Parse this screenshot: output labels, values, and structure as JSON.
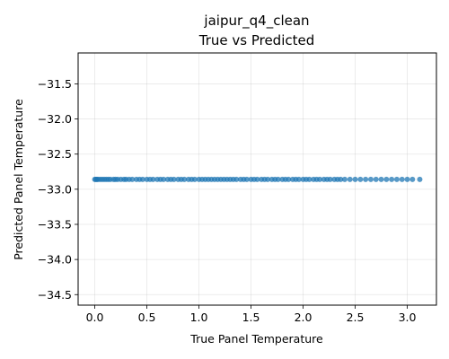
{
  "chart_data": {
    "type": "scatter",
    "title": "jaipur_q4_clean",
    "subtitle": "True vs Predicted",
    "xlabel": "True Panel Temperature",
    "ylabel": "Predicted Panel Temperature",
    "xlim": [
      -0.16,
      3.28
    ],
    "ylim": [
      -34.65,
      -31.06
    ],
    "xticks": [
      0.0,
      0.5,
      1.0,
      1.5,
      2.0,
      2.5,
      3.0
    ],
    "xtick_labels": [
      "0.0",
      "0.5",
      "1.0",
      "1.5",
      "2.0",
      "2.5",
      "3.0"
    ],
    "yticks": [
      -34.5,
      -34.0,
      -33.5,
      -33.0,
      -32.5,
      -32.0,
      -31.5
    ],
    "ytick_labels": [
      "−34.5",
      "−34.0",
      "−33.5",
      "−33.0",
      "−32.5",
      "−32.0",
      "−31.5"
    ],
    "grid": true,
    "marker_color": "#1f77b4",
    "series": [
      {
        "predicted_value": -32.86,
        "x": [
          0.0,
          0.01,
          0.02,
          0.03,
          0.05,
          0.07,
          0.09,
          0.11,
          0.13,
          0.15,
          0.18,
          0.2,
          0.22,
          0.25,
          0.28,
          0.3,
          0.33,
          0.36,
          0.4,
          0.43,
          0.46,
          0.5,
          0.53,
          0.56,
          0.6,
          0.63,
          0.66,
          0.7,
          0.73,
          0.76,
          0.8,
          0.83,
          0.86,
          0.9,
          0.93,
          0.96,
          1.0,
          1.03,
          1.06,
          1.09,
          1.12,
          1.15,
          1.18,
          1.21,
          1.24,
          1.27,
          1.3,
          1.33,
          1.36,
          1.4,
          1.43,
          1.46,
          1.5,
          1.53,
          1.56,
          1.6,
          1.63,
          1.66,
          1.7,
          1.73,
          1.76,
          1.8,
          1.83,
          1.86,
          1.9,
          1.93,
          1.96,
          2.0,
          2.03,
          2.06,
          2.1,
          2.13,
          2.16,
          2.2,
          2.23,
          2.26,
          2.3,
          2.33,
          2.36,
          2.4,
          2.45,
          2.5,
          2.55,
          2.6,
          2.65,
          2.7,
          2.75,
          2.8,
          2.85,
          2.9,
          2.95,
          3.0,
          3.05,
          3.12
        ]
      }
    ]
  }
}
